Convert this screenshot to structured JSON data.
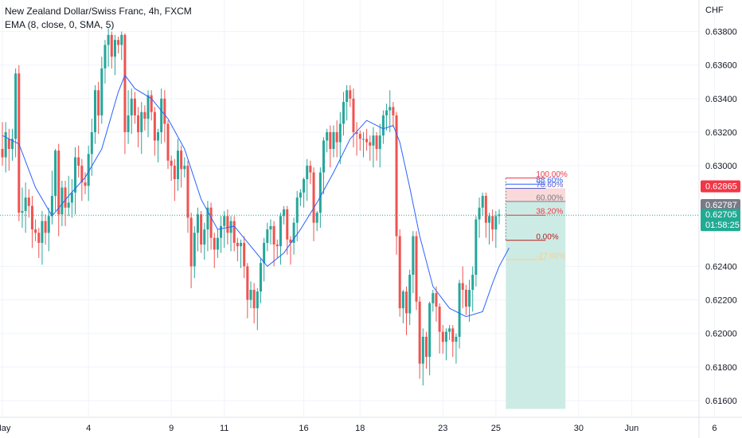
{
  "header": {
    "symbol_line": "New Zealand Dollar/Swiss Franc, 4h, FXCM",
    "indicator_line": "EMA (8, close, 0, SMA, 5)"
  },
  "colors": {
    "up": "#26a69a",
    "down": "#ef5350",
    "ema": "#2962ff",
    "tp_zone": "#cdebe5",
    "sl_zone": "#f9d9d9",
    "current_price": "#22ab94",
    "sl_tag": "#f23645",
    "mid_tag": "#787b86"
  },
  "chart_data": {
    "type": "candlestick",
    "currency": "CHF",
    "ylim": [
      0.615,
      0.6395
    ],
    "y_ticks": [
      "0.63800",
      "0.63600",
      "0.63400",
      "0.63200",
      "0.63000",
      "0.62400",
      "0.62200",
      "0.62000",
      "0.61800",
      "0.61600"
    ],
    "y_tick_values": [
      0.638,
      0.636,
      0.634,
      0.632,
      0.63,
      0.624,
      0.622,
      0.62,
      0.618,
      0.616
    ],
    "x_ticks": [
      "May",
      "4",
      "9",
      "11",
      "16",
      "18",
      "23",
      "25",
      "30",
      "Jun",
      "6"
    ],
    "x_tick_index": [
      0,
      26,
      51,
      67,
      91,
      108,
      133,
      149,
      174,
      190,
      215
    ],
    "candles": [
      [
        0.631,
        0.6305,
        0.6326
      ],
      [
        0.6305,
        0.632,
        0.6326
      ],
      [
        0.6316,
        0.631,
        0.6322
      ],
      [
        0.631,
        0.6316,
        0.6322
      ],
      [
        0.6316,
        0.6355,
        0.6358
      ],
      [
        0.6355,
        0.6272,
        0.636
      ],
      [
        0.6272,
        0.6273,
        0.6287
      ],
      [
        0.6273,
        0.6281,
        0.629
      ],
      [
        0.6281,
        0.6276,
        0.6286
      ],
      [
        0.6276,
        0.6262,
        0.6282
      ],
      [
        0.6262,
        0.626,
        0.6268
      ],
      [
        0.626,
        0.6254,
        0.6263
      ],
      [
        0.6254,
        0.6267,
        0.6273
      ],
      [
        0.6267,
        0.626,
        0.6271
      ],
      [
        0.626,
        0.627,
        0.6275
      ],
      [
        0.627,
        0.6282,
        0.6297
      ],
      [
        0.6282,
        0.6309,
        0.631
      ],
      [
        0.6309,
        0.6271,
        0.6313
      ],
      [
        0.6271,
        0.6287,
        0.6291
      ],
      [
        0.6287,
        0.6275,
        0.6291
      ],
      [
        0.6275,
        0.6278,
        0.6294
      ],
      [
        0.6278,
        0.6284,
        0.6292
      ],
      [
        0.6284,
        0.6305,
        0.6311
      ],
      [
        0.6305,
        0.63,
        0.6312
      ],
      [
        0.63,
        0.629,
        0.6304
      ],
      [
        0.629,
        0.6288,
        0.6296
      ],
      [
        0.6288,
        0.6307,
        0.6312
      ],
      [
        0.6307,
        0.632,
        0.6328
      ],
      [
        0.632,
        0.6345,
        0.6348
      ],
      [
        0.6345,
        0.633,
        0.635
      ],
      [
        0.633,
        0.6358,
        0.6365
      ],
      [
        0.6358,
        0.6372,
        0.6375
      ],
      [
        0.6372,
        0.6378,
        0.6382
      ],
      [
        0.6378,
        0.6365,
        0.638
      ],
      [
        0.6365,
        0.6375,
        0.6378
      ],
      [
        0.6375,
        0.6372,
        0.6377
      ],
      [
        0.6372,
        0.6378,
        0.638
      ],
      [
        0.6378,
        0.632,
        0.6379
      ],
      [
        0.632,
        0.633,
        0.6345
      ],
      [
        0.633,
        0.634,
        0.6346
      ],
      [
        0.634,
        0.633,
        0.6344
      ],
      [
        0.633,
        0.632,
        0.6335
      ],
      [
        0.632,
        0.6332,
        0.6338
      ],
      [
        0.6332,
        0.6328,
        0.6336
      ],
      [
        0.6328,
        0.6342,
        0.6345
      ],
      [
        0.6342,
        0.6332,
        0.6345
      ],
      [
        0.6332,
        0.6315,
        0.6335
      ],
      [
        0.6315,
        0.632,
        0.6322
      ],
      [
        0.632,
        0.634,
        0.6346
      ],
      [
        0.634,
        0.6325,
        0.6345
      ],
      [
        0.6325,
        0.6303,
        0.6327
      ],
      [
        0.6303,
        0.63,
        0.6306
      ],
      [
        0.63,
        0.6292,
        0.6304
      ],
      [
        0.6292,
        0.6309,
        0.6316
      ],
      [
        0.6309,
        0.6298,
        0.6312
      ],
      [
        0.6298,
        0.63,
        0.6305
      ],
      [
        0.63,
        0.6269,
        0.6303
      ],
      [
        0.6269,
        0.624,
        0.6272
      ],
      [
        0.624,
        0.626,
        0.6264
      ],
      [
        0.626,
        0.6271,
        0.6275
      ],
      [
        0.6271,
        0.6253,
        0.6273
      ],
      [
        0.6253,
        0.6262,
        0.6266
      ],
      [
        0.6262,
        0.6275,
        0.6279
      ],
      [
        0.6275,
        0.6257,
        0.6278
      ],
      [
        0.6257,
        0.625,
        0.626
      ],
      [
        0.625,
        0.6257,
        0.6262
      ],
      [
        0.6257,
        0.6264,
        0.627
      ],
      [
        0.6264,
        0.627,
        0.6273
      ],
      [
        0.627,
        0.626,
        0.6274
      ],
      [
        0.626,
        0.6267,
        0.627
      ],
      [
        0.6267,
        0.6254,
        0.627
      ],
      [
        0.6254,
        0.6252,
        0.6257
      ],
      [
        0.6252,
        0.6254,
        0.6256
      ],
      [
        0.6254,
        0.624,
        0.6258
      ],
      [
        0.624,
        0.622,
        0.6242
      ],
      [
        0.622,
        0.6226,
        0.6231
      ],
      [
        0.6226,
        0.6215,
        0.623
      ],
      [
        0.6215,
        0.6225,
        0.6227
      ],
      [
        0.6225,
        0.6242,
        0.6245
      ],
      [
        0.6242,
        0.6254,
        0.6257
      ],
      [
        0.6254,
        0.6262,
        0.6266
      ],
      [
        0.6262,
        0.6264,
        0.6268
      ],
      [
        0.6264,
        0.6253,
        0.6267
      ],
      [
        0.6253,
        0.6252,
        0.6256
      ],
      [
        0.6252,
        0.627,
        0.6272
      ],
      [
        0.627,
        0.6274,
        0.6276
      ],
      [
        0.6274,
        0.6256,
        0.6276
      ],
      [
        0.6256,
        0.6254,
        0.6258
      ],
      [
        0.6254,
        0.6266,
        0.6269
      ],
      [
        0.6266,
        0.6281,
        0.6285
      ],
      [
        0.6281,
        0.6284,
        0.6286
      ],
      [
        0.6284,
        0.6292,
        0.6293
      ],
      [
        0.6292,
        0.63,
        0.6304
      ],
      [
        0.63,
        0.6296,
        0.6303
      ],
      [
        0.6296,
        0.6266,
        0.6299
      ],
      [
        0.6266,
        0.6272,
        0.6273
      ],
      [
        0.6272,
        0.6296,
        0.6299
      ],
      [
        0.6296,
        0.6315,
        0.6317
      ],
      [
        0.6315,
        0.632,
        0.6322
      ],
      [
        0.632,
        0.631,
        0.6324
      ],
      [
        0.631,
        0.632,
        0.6324
      ],
      [
        0.632,
        0.6314,
        0.6327
      ],
      [
        0.6314,
        0.6325,
        0.6332
      ],
      [
        0.6325,
        0.6338,
        0.6344
      ],
      [
        0.6338,
        0.6345,
        0.6348
      ],
      [
        0.6345,
        0.634,
        0.6348
      ],
      [
        0.634,
        0.632,
        0.6346
      ],
      [
        0.632,
        0.6319,
        0.6326
      ],
      [
        0.6319,
        0.6316,
        0.6321
      ],
      [
        0.6316,
        0.6316,
        0.632
      ],
      [
        0.6316,
        0.6314,
        0.6322
      ],
      [
        0.6314,
        0.6312,
        0.6318
      ],
      [
        0.6312,
        0.6318,
        0.6323
      ],
      [
        0.6318,
        0.631,
        0.632
      ],
      [
        0.631,
        0.6318,
        0.6325
      ],
      [
        0.6318,
        0.633,
        0.6333
      ],
      [
        0.633,
        0.6333,
        0.6337
      ],
      [
        0.6333,
        0.6335,
        0.6345
      ],
      [
        0.6335,
        0.633,
        0.6338
      ],
      [
        0.633,
        0.6258,
        0.6332
      ],
      [
        0.6258,
        0.6215,
        0.6262
      ],
      [
        0.6215,
        0.6225,
        0.6226
      ],
      [
        0.6225,
        0.6212,
        0.6228
      ],
      [
        0.6212,
        0.6235,
        0.6238
      ],
      [
        0.6235,
        0.6258,
        0.6261
      ],
      [
        0.6258,
        0.6219,
        0.6261
      ],
      [
        0.6219,
        0.6182,
        0.6222
      ],
      [
        0.6182,
        0.6198,
        0.6203
      ],
      [
        0.6198,
        0.6186,
        0.6201
      ],
      [
        0.6186,
        0.6218,
        0.6219
      ],
      [
        0.6218,
        0.6224,
        0.6226
      ],
      [
        0.6224,
        0.6216,
        0.6228
      ],
      [
        0.6216,
        0.6201,
        0.6218
      ],
      [
        0.6201,
        0.6195,
        0.6205
      ],
      [
        0.6195,
        0.6201,
        0.6203
      ],
      [
        0.6201,
        0.6203,
        0.6205
      ],
      [
        0.6203,
        0.6195,
        0.6205
      ],
      [
        0.6195,
        0.6198,
        0.62
      ],
      [
        0.6198,
        0.623,
        0.6232
      ],
      [
        0.623,
        0.6226,
        0.624
      ],
      [
        0.6226,
        0.6216,
        0.6229
      ],
      [
        0.6216,
        0.6226,
        0.6232
      ],
      [
        0.6226,
        0.6235,
        0.624
      ],
      [
        0.6235,
        0.6268,
        0.627
      ],
      [
        0.6268,
        0.6275,
        0.6281
      ],
      [
        0.6275,
        0.6282,
        0.6284
      ],
      [
        0.6282,
        0.6266,
        0.6284
      ],
      [
        0.6266,
        0.627,
        0.6272
      ],
      [
        0.627,
        0.6262,
        0.6274
      ],
      [
        0.6262,
        0.627,
        0.6273
      ],
      [
        0.627,
        0.6271,
        0.6274
      ]
    ],
    "ema_line": [
      [
        0,
        0.6318
      ],
      [
        5,
        0.6313
      ],
      [
        10,
        0.6287
      ],
      [
        15,
        0.627
      ],
      [
        20,
        0.6282
      ],
      [
        25,
        0.6293
      ],
      [
        30,
        0.631
      ],
      [
        35,
        0.6344
      ],
      [
        37,
        0.6354
      ],
      [
        40,
        0.6346
      ],
      [
        45,
        0.634
      ],
      [
        50,
        0.6328
      ],
      [
        55,
        0.631
      ],
      [
        60,
        0.628
      ],
      [
        65,
        0.6262
      ],
      [
        70,
        0.6264
      ],
      [
        75,
        0.6252
      ],
      [
        80,
        0.624
      ],
      [
        85,
        0.6248
      ],
      [
        90,
        0.6262
      ],
      [
        95,
        0.6278
      ],
      [
        100,
        0.6296
      ],
      [
        105,
        0.6316
      ],
      [
        110,
        0.6327
      ],
      [
        115,
        0.6322
      ],
      [
        118,
        0.6324
      ],
      [
        120,
        0.6314
      ],
      [
        123,
        0.6287
      ],
      [
        126,
        0.6258
      ],
      [
        130,
        0.6228
      ],
      [
        135,
        0.6215
      ],
      [
        140,
        0.621
      ],
      [
        145,
        0.6213
      ],
      [
        148,
        0.623
      ],
      [
        150,
        0.624
      ],
      [
        153,
        0.6251
      ]
    ],
    "annotations": {
      "fib_levels": [
        {
          "label": "100.00%",
          "price": 0.62927,
          "color": "#f23645"
        },
        {
          "label": "88.60%",
          "price": 0.6289,
          "color": "#2962ff"
        },
        {
          "label": "78.60%",
          "price": 0.62865,
          "color": "#5b5fc7"
        },
        {
          "label": "60.00%",
          "price": 0.62787,
          "color": "#787b86"
        },
        {
          "label": "38.20%",
          "price": 0.62705,
          "color": "#f23645"
        },
        {
          "label": "0.00%",
          "price": 0.62555,
          "color": "#b71c1c"
        },
        {
          "label": "-27.00%",
          "price": 0.6244,
          "color": "#ffcc80"
        }
      ],
      "position": {
        "entry": 0.62787,
        "stop": 0.62865,
        "target": 0.6155,
        "start_index": 152,
        "end_index": 170
      }
    },
    "price_tags": [
      {
        "label": "0.62865",
        "price": 0.62865,
        "role": "sl"
      },
      {
        "label": "0.62787",
        "price": 0.62787,
        "role": "mid"
      },
      {
        "label": "0.62705",
        "price": 0.62705,
        "role": "current",
        "sub": "01:58:25"
      }
    ],
    "current_price": 0.62705
  }
}
